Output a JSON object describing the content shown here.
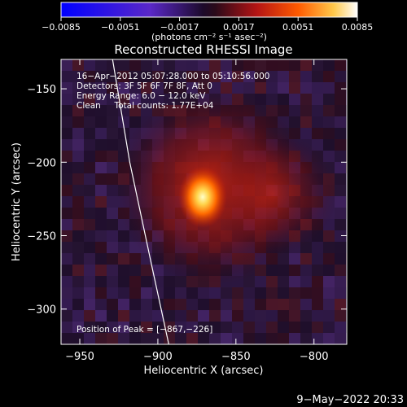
{
  "chart_data": {
    "type": "heatmap",
    "title": "Reconstructed RHESSI Image",
    "xlabel": "Heliocentric X (arcsec)",
    "ylabel": "Heliocentric Y (arcsec)",
    "xlim": [
      -962,
      -929
    ],
    "xlim_note": "",
    "x_range": [
      -962,
      -779
    ],
    "y_range": [
      -324,
      -130
    ],
    "x_ticks": [
      -950,
      -900,
      -850,
      -800
    ],
    "x_tick_labels": [
      "−950",
      "−900",
      "−850",
      "−800"
    ],
    "y_ticks": [
      -150,
      -200,
      -250,
      -300
    ],
    "y_tick_labels": [
      "−150",
      "−200",
      "−250",
      "−300"
    ],
    "colorbar": {
      "min": -0.0085,
      "max": 0.0085,
      "tick_values": [
        -0.0085,
        -0.0051,
        -0.0017,
        0.0017,
        0.0051,
        0.0085
      ],
      "tick_labels": [
        "−0.0085",
        "−0.0051",
        "−0.0017",
        "0.0017",
        "0.0051",
        "0.0085"
      ],
      "units": "(photons cm⁻² s⁻¹ asec⁻²)"
    },
    "annotations": [
      "16−Apr−2012 05:07:28.000 to 05:10:56.000",
      "Detectors: 3F 5F 6F 7F 8F, Att 0",
      "Energy Range: 6.0 − 12.0 keV",
      "Clean     Total counts: 1.77E+04"
    ],
    "peak_label": "Position of Peak = [−867,−226]",
    "peak": [
      -867,
      -226
    ],
    "limb": [
      [
        -929,
        -130
      ],
      [
        -918,
        -200
      ],
      [
        -904,
        -270
      ],
      [
        -893,
        -324
      ]
    ]
  },
  "footer": {
    "timestamp": "9−May−2022 20:33"
  }
}
